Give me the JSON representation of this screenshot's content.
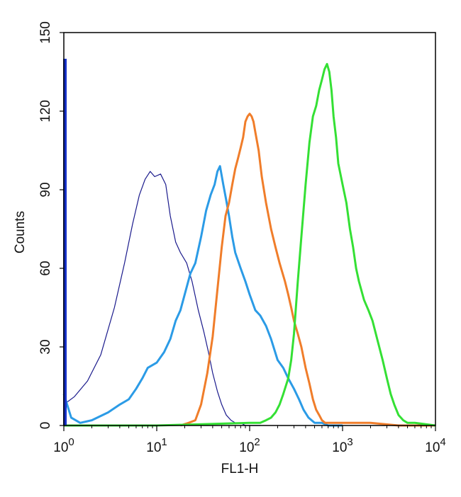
{
  "chart_data": {
    "type": "line",
    "title": "",
    "xlabel": "FL1-H",
    "ylabel": "Counts",
    "x_scale": "log",
    "xlim": [
      1,
      10000
    ],
    "ylim": [
      0,
      150
    ],
    "grid": false,
    "legend": "none",
    "x_ticks": [
      {
        "value": 1,
        "base": "10",
        "exp": "0"
      },
      {
        "value": 10,
        "base": "10",
        "exp": "1"
      },
      {
        "value": 100,
        "base": "10",
        "exp": "2"
      },
      {
        "value": 1000,
        "base": "10",
        "exp": "3"
      },
      {
        "value": 10000,
        "base": "10",
        "exp": "4"
      }
    ],
    "y_ticks": [
      0,
      30,
      60,
      90,
      120,
      150
    ],
    "series": [
      {
        "color": "#1a1a8c",
        "x": [
          1,
          1.3,
          1.8,
          2.5,
          3.5,
          4.5,
          5.5,
          6.5,
          7.5,
          8.5,
          9.5,
          11,
          12.5,
          14,
          16,
          18,
          21,
          24,
          28,
          32,
          36,
          40,
          45,
          50,
          56,
          63,
          70,
          80,
          90,
          100,
          115,
          130
        ],
        "y": [
          8,
          11,
          17,
          27,
          45,
          62,
          77,
          88,
          94,
          97,
          95,
          96,
          92,
          80,
          70,
          66,
          62,
          55,
          44,
          36,
          28,
          20,
          13,
          8,
          4,
          2,
          1,
          1,
          0,
          0,
          0,
          0
        ]
      },
      {
        "color": "#2b9be6",
        "x": [
          1,
          1.2,
          1.5,
          2,
          3,
          4,
          5,
          6,
          7,
          8,
          10,
          12,
          14,
          16,
          18,
          20,
          23,
          26,
          30,
          34,
          38,
          42,
          45,
          48,
          52,
          56,
          60,
          65,
          70,
          80,
          90,
          100,
          115,
          130,
          150,
          170,
          200,
          230,
          260,
          300,
          340,
          380,
          430,
          500,
          600,
          700,
          1000
        ],
        "y": [
          12,
          3,
          1,
          2,
          5,
          8,
          10,
          14,
          18,
          22,
          24,
          28,
          33,
          40,
          44,
          50,
          58,
          62,
          72,
          82,
          88,
          92,
          97,
          99,
          92,
          86,
          80,
          72,
          66,
          60,
          55,
          50,
          44,
          42,
          38,
          33,
          25,
          22,
          18,
          14,
          10,
          6,
          3,
          1,
          1,
          0,
          0
        ]
      },
      {
        "color": "#f07d2a",
        "x": [
          18,
          22,
          26,
          30,
          35,
          40,
          45,
          50,
          55,
          60,
          65,
          70,
          75,
          80,
          85,
          90,
          95,
          100,
          105,
          110,
          115,
          125,
          135,
          150,
          170,
          190,
          210,
          240,
          260,
          280,
          300,
          330,
          360,
          400,
          440,
          480,
          520,
          560,
          600,
          650,
          700,
          800,
          1000,
          2000,
          4000,
          10000
        ],
        "y": [
          0,
          1,
          2,
          8,
          20,
          34,
          52,
          68,
          80,
          85,
          92,
          98,
          102,
          106,
          110,
          116,
          118,
          119,
          118,
          116,
          112,
          105,
          95,
          85,
          75,
          68,
          62,
          55,
          50,
          45,
          40,
          35,
          30,
          22,
          16,
          10,
          6,
          4,
          2,
          1,
          1,
          1,
          1,
          1,
          0,
          0
        ]
      },
      {
        "color": "#34e034",
        "x": [
          1,
          10,
          100,
          130,
          150,
          170,
          190,
          210,
          230,
          260,
          280,
          300,
          330,
          360,
          400,
          440,
          480,
          520,
          560,
          600,
          640,
          680,
          720,
          760,
          800,
          850,
          900,
          1000,
          1100,
          1200,
          1300,
          1400,
          1500,
          1700,
          1900,
          2100,
          2400,
          2700,
          3000,
          3300,
          3600,
          4000,
          4500,
          5000,
          6000,
          10000
        ],
        "y": [
          0,
          0,
          1,
          1,
          2,
          3,
          5,
          8,
          12,
          18,
          25,
          35,
          55,
          72,
          92,
          108,
          118,
          122,
          128,
          132,
          136,
          138,
          135,
          128,
          118,
          110,
          100,
          92,
          85,
          75,
          68,
          60,
          55,
          48,
          44,
          40,
          32,
          25,
          18,
          12,
          8,
          4,
          2,
          1,
          1,
          0
        ]
      }
    ]
  }
}
